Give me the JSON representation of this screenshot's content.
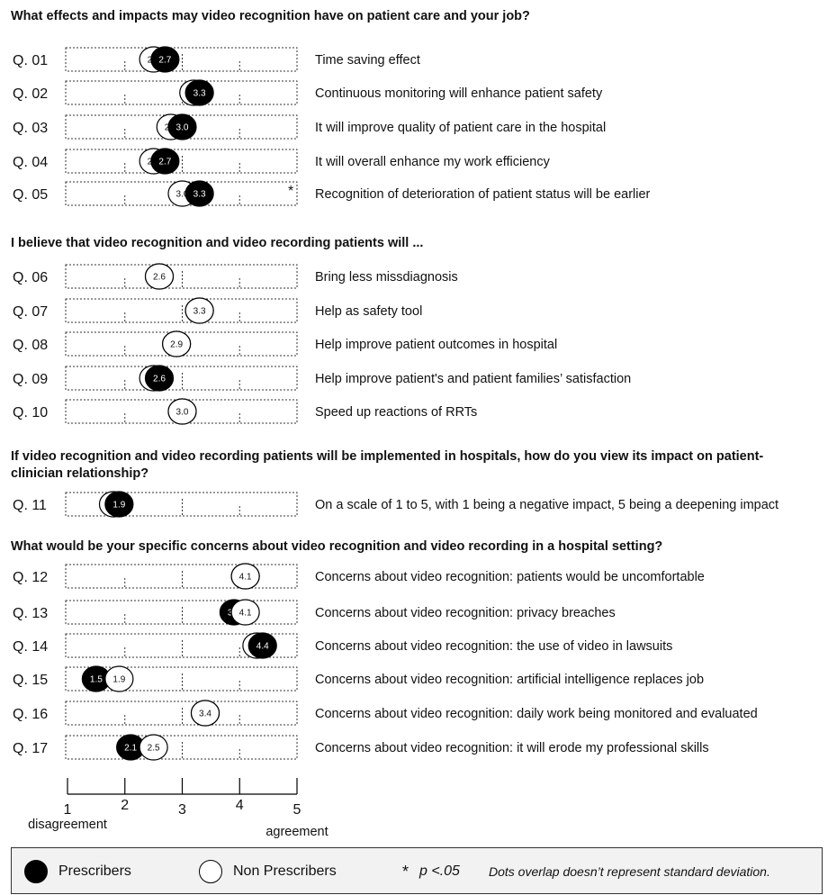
{
  "chart_data": {
    "type": "scatter",
    "xlim": [
      1,
      5
    ],
    "xticks": [
      "1",
      "2",
      "3",
      "4",
      "5"
    ],
    "x_min_label": "disagreement",
    "x_max_label": "agreement",
    "series": [
      {
        "name": "Prescribers",
        "color": "#000000"
      },
      {
        "name": "Non Prescribers",
        "color": "#ffffff"
      }
    ],
    "sections": [
      {
        "heading": "What effects and impacts may video recognition have on patient care and your job?",
        "heading_line2": "",
        "items": [
          {
            "q": "Q. 01",
            "text": "Time saving effect",
            "prescribers": 2.7,
            "non_prescribers": 2.5,
            "sig": ""
          },
          {
            "q": "Q. 02",
            "text": "Continuous monitoring will enhance patient safety",
            "prescribers": 3.3,
            "non_prescribers": 3.2,
            "sig": ""
          },
          {
            "q": "Q. 03",
            "text": "It will improve quality of patient care in the hospital",
            "prescribers": 3.0,
            "non_prescribers": 2.8,
            "sig": ""
          },
          {
            "q": "Q. 04",
            "text": "It will overall enhance my work efficiency",
            "prescribers": 2.7,
            "non_prescribers": 2.5,
            "sig": ""
          },
          {
            "q": "Q. 05",
            "text": "Recognition of deterioration of patient status will be earlier",
            "prescribers": 3.3,
            "non_prescribers": 3.0,
            "sig": "*"
          }
        ]
      },
      {
        "heading": "I believe that video recognition and video recording patients will ...",
        "heading_line2": "",
        "items": [
          {
            "q": "Q. 06",
            "text": "Bring less missdiagnosis",
            "prescribers": 2.6,
            "non_prescribers": 2.6,
            "sig": ""
          },
          {
            "q": "Q. 07",
            "text": "Help as safety tool",
            "prescribers": 3.3,
            "non_prescribers": 3.3,
            "sig": ""
          },
          {
            "q": "Q. 08",
            "text": "Help improve patient outcomes in hospital",
            "prescribers": 2.9,
            "non_prescribers": 2.9,
            "sig": ""
          },
          {
            "q": "Q. 09",
            "text": "Help improve patient's and patient families’ satisfaction",
            "prescribers": 2.6,
            "non_prescribers": 2.5,
            "sig": ""
          },
          {
            "q": "Q. 10",
            "text": "Speed up reactions of RRTs",
            "prescribers": 3.0,
            "non_prescribers": 3.0,
            "sig": ""
          }
        ]
      },
      {
        "heading": "If video recognition and video recording patients will be implemented in hospitals, how do you view its impact on patient-",
        "heading_line2": "clinician relationship?",
        "items": [
          {
            "q": "Q. 11",
            "text": "On a scale of 1 to 5, with 1 being a negative impact, 5 being a deepening impact",
            "prescribers": 1.9,
            "non_prescribers": 1.8,
            "sig": ""
          }
        ]
      },
      {
        "heading": "What would be your specific concerns about video recognition and video recording in a hospital setting?",
        "heading_line2": "",
        "items": [
          {
            "q": "Q. 12",
            "text": "Concerns about video recognition: patients would be uncomfortable",
            "prescribers": 4.1,
            "non_prescribers": 4.1,
            "sig": ""
          },
          {
            "q": "Q. 13",
            "text": "Concerns about video recognition: privacy breaches",
            "prescribers": 3.9,
            "non_prescribers": 4.1,
            "sig": ""
          },
          {
            "q": "Q. 14",
            "text": "Concerns about video recognition: the use of video in lawsuits",
            "prescribers": 4.4,
            "non_prescribers": 4.3,
            "sig": ""
          },
          {
            "q": "Q. 15",
            "text": "Concerns about video recognition: artificial intelligence replaces job",
            "prescribers": 1.5,
            "non_prescribers": 1.9,
            "sig": ""
          },
          {
            "q": "Q. 16",
            "text": "Concerns about video recognition: daily work being monitored and evaluated",
            "prescribers": 3.4,
            "non_prescribers": 3.4,
            "sig": ""
          },
          {
            "q": "Q. 17",
            "text": "Concerns about video recognition: it will erode my professional skills",
            "prescribers": 2.1,
            "non_prescribers": 2.5,
            "sig": ""
          }
        ]
      }
    ]
  },
  "legend": {
    "prescribers": "Prescribers",
    "non_prescribers": "Non Prescribers",
    "sig_mark": "*",
    "sig_text": "p <.05",
    "note": "Dots overlap doesn’t represent standard deviation."
  }
}
